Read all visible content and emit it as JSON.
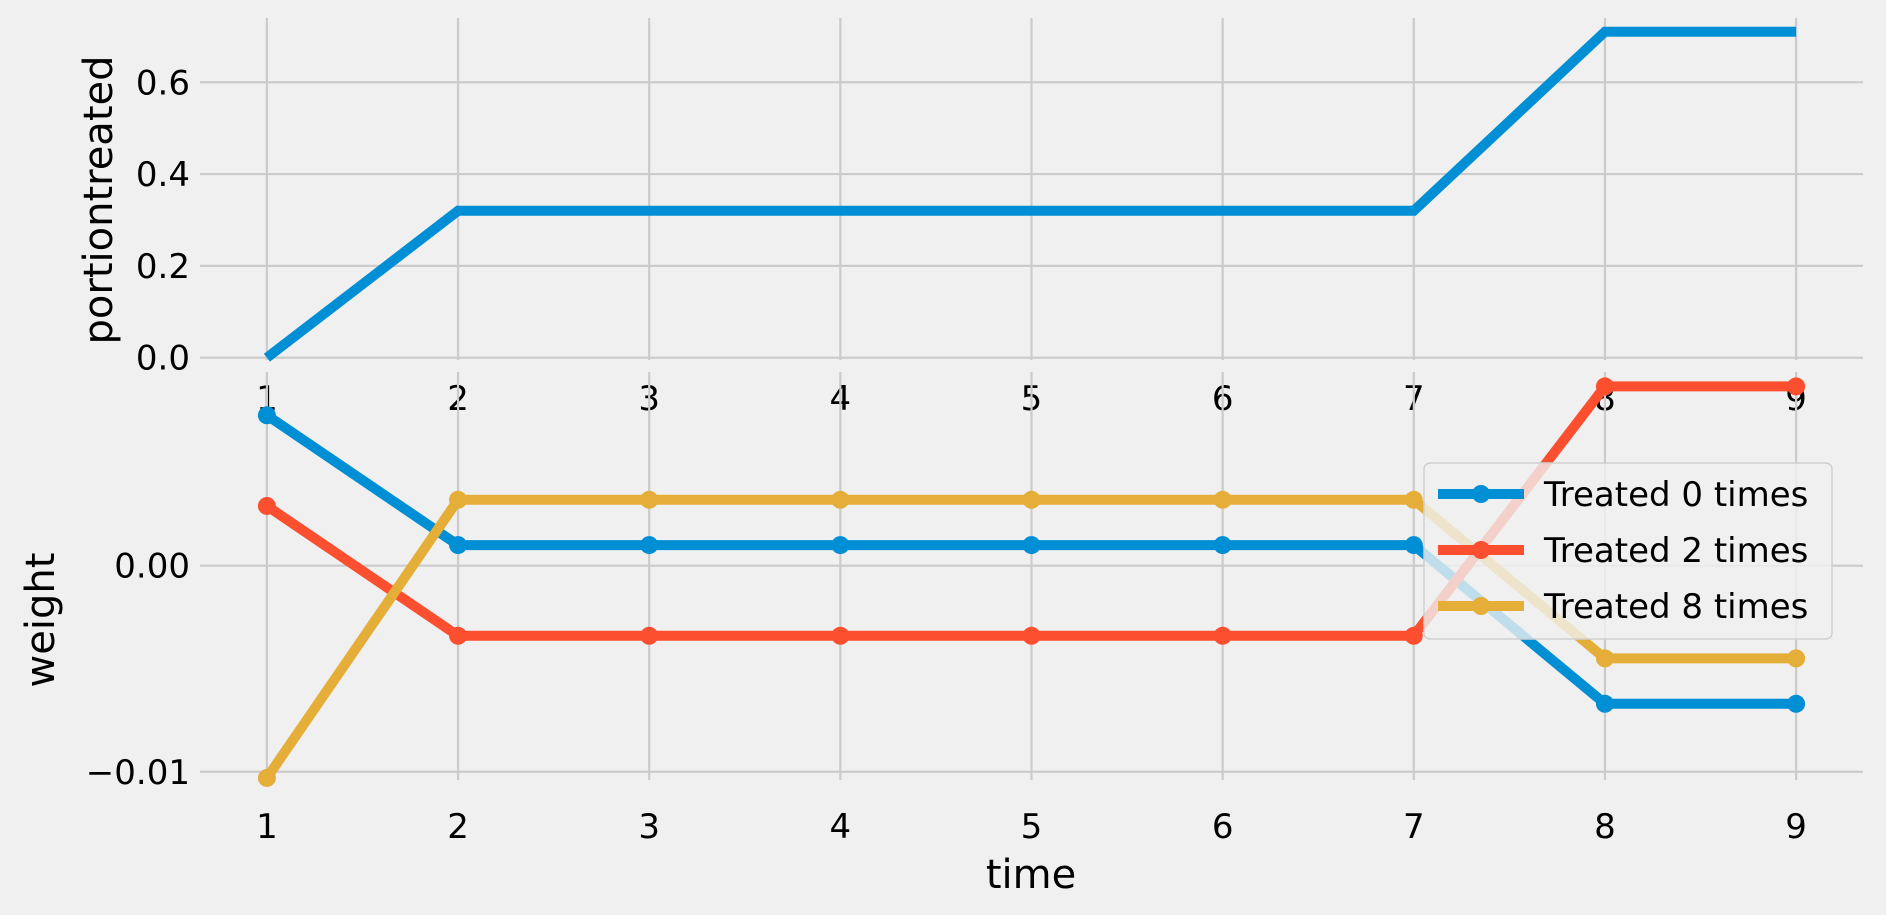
{
  "chart_data": [
    {
      "type": "line",
      "title": "",
      "xlabel": "",
      "ylabel": "portiontreated",
      "x": [
        1,
        2,
        3,
        4,
        5,
        6,
        7,
        8,
        9
      ],
      "xticks": [
        "1",
        "2",
        "3",
        "4",
        "5",
        "6",
        "7",
        "8",
        "9"
      ],
      "yticks": [
        "0.0",
        "0.2",
        "0.4",
        "0.6"
      ],
      "ylim": [
        -0.005,
        0.74
      ],
      "xlim": [
        0.65,
        9.35
      ],
      "grid": true,
      "markers": false,
      "series": [
        {
          "values": [
            0.0,
            0.32,
            0.32,
            0.32,
            0.32,
            0.32,
            0.32,
            0.71,
            0.71
          ],
          "color": "#008fd5"
        }
      ]
    },
    {
      "type": "line",
      "title": "",
      "xlabel": "time",
      "ylabel": "weight",
      "x": [
        1,
        2,
        3,
        4,
        5,
        6,
        7,
        8,
        9
      ],
      "xticks": [
        "1",
        "2",
        "3",
        "4",
        "5",
        "6",
        "7",
        "8",
        "9"
      ],
      "yticks": [
        "−0.01",
        "0.00"
      ],
      "ylim": [
        -0.0104,
        0.0094
      ],
      "xlim": [
        0.65,
        9.35
      ],
      "grid": true,
      "markers": true,
      "legend": {
        "placement": "top-right"
      },
      "series": [
        {
          "name": "Treated 0 times",
          "color": "#008fd5",
          "values": [
            0.0073,
            0.001,
            0.001,
            0.001,
            0.001,
            0.001,
            0.001,
            -0.0067,
            -0.0067
          ]
        },
        {
          "name": "Treated 2 times",
          "color": "#fc4f30",
          "values": [
            0.0029,
            -0.0034,
            -0.0034,
            -0.0034,
            -0.0034,
            -0.0034,
            -0.0034,
            0.0087,
            0.0087
          ]
        },
        {
          "name": "Treated 8 times",
          "color": "#e5ae38",
          "values": [
            -0.0103,
            0.0032,
            0.0032,
            0.0032,
            0.0032,
            0.0032,
            0.0032,
            -0.0045,
            -0.0045
          ]
        }
      ]
    }
  ]
}
